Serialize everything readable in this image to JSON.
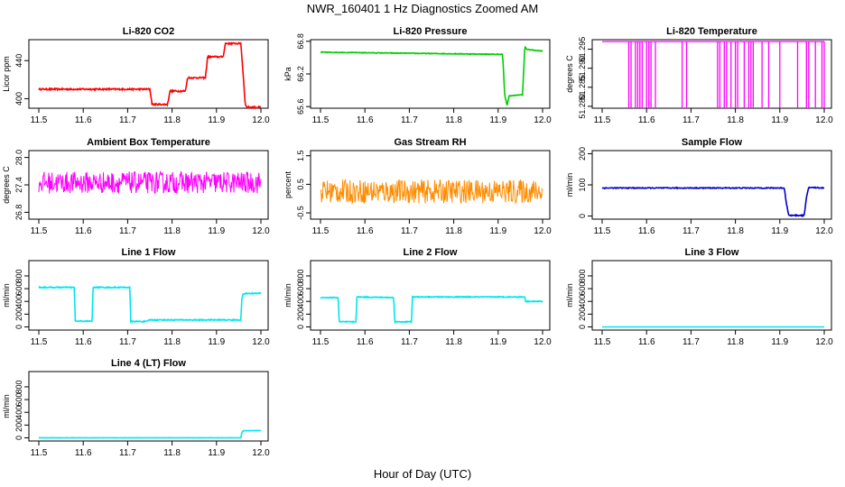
{
  "figure": {
    "title": "NWR_160401  1 Hz Diagnostics Zoomed AM",
    "xlabel": "Hour of Day (UTC)"
  },
  "chart_data": [
    {
      "type": "line",
      "title": "Li-820 CO2",
      "xlabel": "",
      "ylabel": "Licor ppm",
      "color": "#ff0000",
      "xlim": [
        11.5,
        12.0
      ],
      "ylim": [
        390,
        462
      ],
      "xticks": [
        "11.5",
        "11.6",
        "11.7",
        "11.8",
        "11.9",
        "12.0"
      ],
      "yticks": [
        400,
        440
      ],
      "x": [
        11.5,
        11.75,
        11.755,
        11.79,
        11.795,
        11.83,
        11.835,
        11.875,
        11.88,
        11.915,
        11.92,
        11.955,
        11.965,
        11.97,
        12.0
      ],
      "y": [
        410,
        410,
        394,
        394,
        408,
        408,
        422,
        422,
        444,
        444,
        458,
        458,
        393,
        391,
        391
      ],
      "noise": 0.8
    },
    {
      "type": "line",
      "title": "Li-820 Pressure",
      "xlabel": "",
      "ylabel": "kPa",
      "color": "#00cc00",
      "xlim": [
        11.5,
        12.0
      ],
      "ylim": [
        65.57,
        66.83
      ],
      "xticks": [
        "11.5",
        "11.6",
        "11.7",
        "11.8",
        "11.9",
        "12.0"
      ],
      "yticks": [
        65.6,
        66.2,
        66.8
      ],
      "yticklabels": [
        "65.6",
        "66.2",
        "66.8"
      ],
      "x": [
        11.5,
        11.7,
        11.91,
        11.915,
        11.92,
        11.925,
        11.93,
        11.955,
        11.96,
        11.965,
        12.0
      ],
      "y": [
        66.6,
        66.58,
        66.56,
        65.8,
        65.62,
        65.8,
        65.8,
        65.82,
        66.7,
        66.65,
        66.62
      ],
      "noise": 0.006
    },
    {
      "type": "line",
      "title": "Li-820 Temperature",
      "xlabel": "",
      "ylabel": "degrees C",
      "color": "#ff00ff",
      "xlim": [
        11.5,
        12.0
      ],
      "ylim": [
        51.2795,
        51.2975
      ],
      "xticks": [
        "11.5",
        "11.6",
        "11.7",
        "11.8",
        "11.9",
        "12.0"
      ],
      "yticks": [
        51.28,
        51.285,
        51.29,
        51.295
      ],
      "yticklabels": [
        "51.280",
        "51.285",
        "51.290",
        "51.295"
      ],
      "baseline": 51.297,
      "low": 51.2795,
      "drop_x": [
        11.56,
        11.565,
        11.575,
        11.58,
        11.585,
        11.59,
        11.6,
        11.605,
        11.61,
        11.62,
        11.68,
        11.69,
        11.76,
        11.765,
        11.775,
        11.78,
        11.79,
        11.8,
        11.805,
        11.82,
        11.83,
        11.835,
        11.84,
        11.86,
        11.875,
        11.9,
        11.94,
        11.96,
        11.965,
        11.98,
        11.995,
        12.0
      ]
    },
    {
      "type": "line",
      "title": "Ambient Box Temperature",
      "xlabel": "",
      "ylabel": "degrees C",
      "color": "#ff00ff",
      "xlim": [
        11.5,
        12.0
      ],
      "ylim": [
        26.65,
        28.15
      ],
      "xticks": [
        "11.5",
        "11.6",
        "11.7",
        "11.8",
        "11.9",
        "12.0"
      ],
      "yticks": [
        26.8,
        27.4,
        28.0
      ],
      "yticklabels": [
        "26.8",
        "27.4",
        "28.0"
      ],
      "center": 27.45,
      "noise": 0.24
    },
    {
      "type": "line",
      "title": "Gas Stream RH",
      "xlabel": "",
      "ylabel": "percent",
      "color": "#ff8c00",
      "xlim": [
        11.5,
        12.0
      ],
      "ylim": [
        -0.72,
        1.68
      ],
      "xticks": [
        "11.5",
        "11.6",
        "11.7",
        "11.8",
        "11.9",
        "12.0"
      ],
      "yticks": [
        -0.5,
        0.5,
        1.5
      ],
      "yticklabels": [
        "-0.5",
        "0.5",
        "1.5"
      ],
      "center": 0.25,
      "noise": 0.42
    },
    {
      "type": "line",
      "title": "Sample Flow",
      "xlabel": "",
      "ylabel": "ml/min",
      "color": "#0000cd",
      "xlim": [
        11.5,
        12.0
      ],
      "ylim": [
        -10,
        210
      ],
      "xticks": [
        "11.5",
        "11.6",
        "11.7",
        "11.8",
        "11.9",
        "12.0"
      ],
      "yticks": [
        0,
        100,
        200
      ],
      "x": [
        11.5,
        11.91,
        11.915,
        11.92,
        11.955,
        11.96,
        11.965,
        12.0
      ],
      "y": [
        90,
        90,
        40,
        2,
        2,
        60,
        92,
        90
      ],
      "noise": 1.5
    },
    {
      "type": "line",
      "title": "Line 1 Flow",
      "xlabel": "",
      "ylabel": "ml/min",
      "color": "#00e5ee",
      "xlim": [
        11.5,
        12.0
      ],
      "ylim": [
        -50,
        1040
      ],
      "xticks": [
        "11.5",
        "11.6",
        "11.7",
        "11.8",
        "11.9",
        "12.0"
      ],
      "yticks": [
        0,
        200,
        400,
        600,
        800
      ],
      "x": [
        11.5,
        11.58,
        11.582,
        11.62,
        11.622,
        11.705,
        11.707,
        11.745,
        11.747,
        11.955,
        11.957,
        11.96,
        12.0
      ],
      "y": [
        620,
        620,
        90,
        90,
        620,
        620,
        85,
        85,
        110,
        110,
        430,
        520,
        530
      ],
      "noise": 8
    },
    {
      "type": "line",
      "title": "Line 2 Flow",
      "xlabel": "",
      "ylabel": "ml/min",
      "color": "#00e5ee",
      "xlim": [
        11.5,
        12.0
      ],
      "ylim": [
        -50,
        1040
      ],
      "xticks": [
        "11.5",
        "11.6",
        "11.7",
        "11.8",
        "11.9",
        "12.0"
      ],
      "yticks": [
        0,
        200,
        400,
        600,
        800
      ],
      "x": [
        11.5,
        11.54,
        11.542,
        11.58,
        11.582,
        11.665,
        11.667,
        11.705,
        11.707,
        11.96,
        11.962,
        12.0
      ],
      "y": [
        460,
        460,
        80,
        80,
        470,
        460,
        80,
        80,
        470,
        470,
        400,
        400
      ],
      "noise": 7
    },
    {
      "type": "line",
      "title": "Line 3 Flow",
      "xlabel": "",
      "ylabel": "ml/min",
      "color": "#00e5ee",
      "xlim": [
        11.5,
        12.0
      ],
      "ylim": [
        -50,
        1040
      ],
      "xticks": [
        "11.5",
        "11.6",
        "11.7",
        "11.8",
        "11.9",
        "12.0"
      ],
      "yticks": [
        0,
        200,
        400,
        600,
        800
      ],
      "x": [
        11.5,
        12.0
      ],
      "y": [
        0,
        0
      ],
      "noise": 0
    },
    {
      "type": "line",
      "title": "Line 4 (LT) Flow",
      "xlabel": "",
      "ylabel": "ml/min",
      "color": "#00e5ee",
      "xlim": [
        11.5,
        12.0
      ],
      "ylim": [
        -50,
        1040
      ],
      "xticks": [
        "11.5",
        "11.6",
        "11.7",
        "11.8",
        "11.9",
        "12.0"
      ],
      "yticks": [
        0,
        200,
        400,
        600,
        800
      ],
      "x": [
        11.5,
        11.955,
        11.957,
        11.96,
        12.0
      ],
      "y": [
        0,
        0,
        80,
        110,
        115
      ],
      "noise": 2
    }
  ]
}
